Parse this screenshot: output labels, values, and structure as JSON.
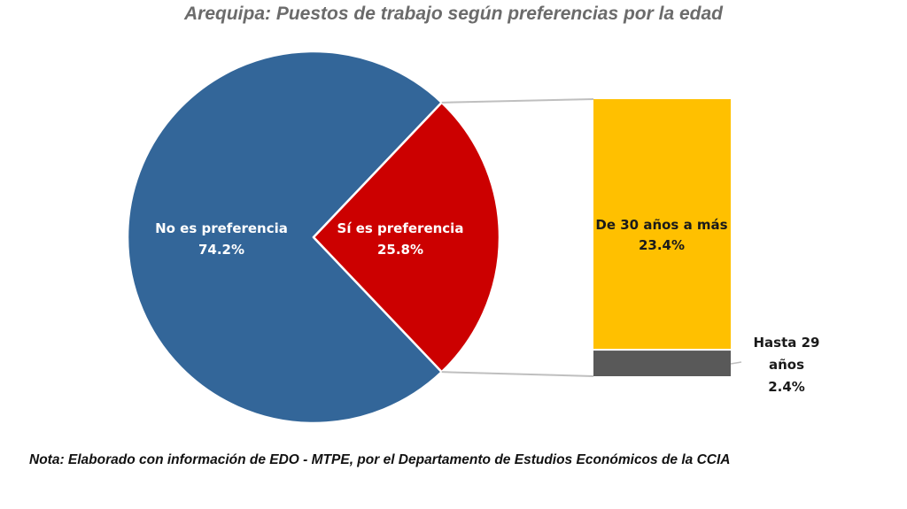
{
  "chart_data": {
    "type": "pie",
    "subtype": "bar-of-pie",
    "title": "Arequipa: Puestos de trabajo según preferencias por la edad",
    "pie": [
      {
        "label": "No es preferencia",
        "value": 74.2,
        "value_label": "74.2%",
        "color": "#336699"
      },
      {
        "label": "Sí es preferencia",
        "value": 25.8,
        "value_label": "25.8%",
        "color": "#cc0000"
      }
    ],
    "bar": [
      {
        "label": "De 30 años a más",
        "value": 23.4,
        "value_label": "23.4%",
        "color": "#ffc000"
      },
      {
        "label_lines": [
          "Hasta 29",
          "años"
        ],
        "value": 2.4,
        "value_label": "2.4%",
        "color": "#595959"
      }
    ],
    "expanded_slice": "Sí es preferencia"
  },
  "note": "Nota: Elaborado con información de EDO - MTPE, por el Departamento de Estudios Económicos de la CCIA"
}
